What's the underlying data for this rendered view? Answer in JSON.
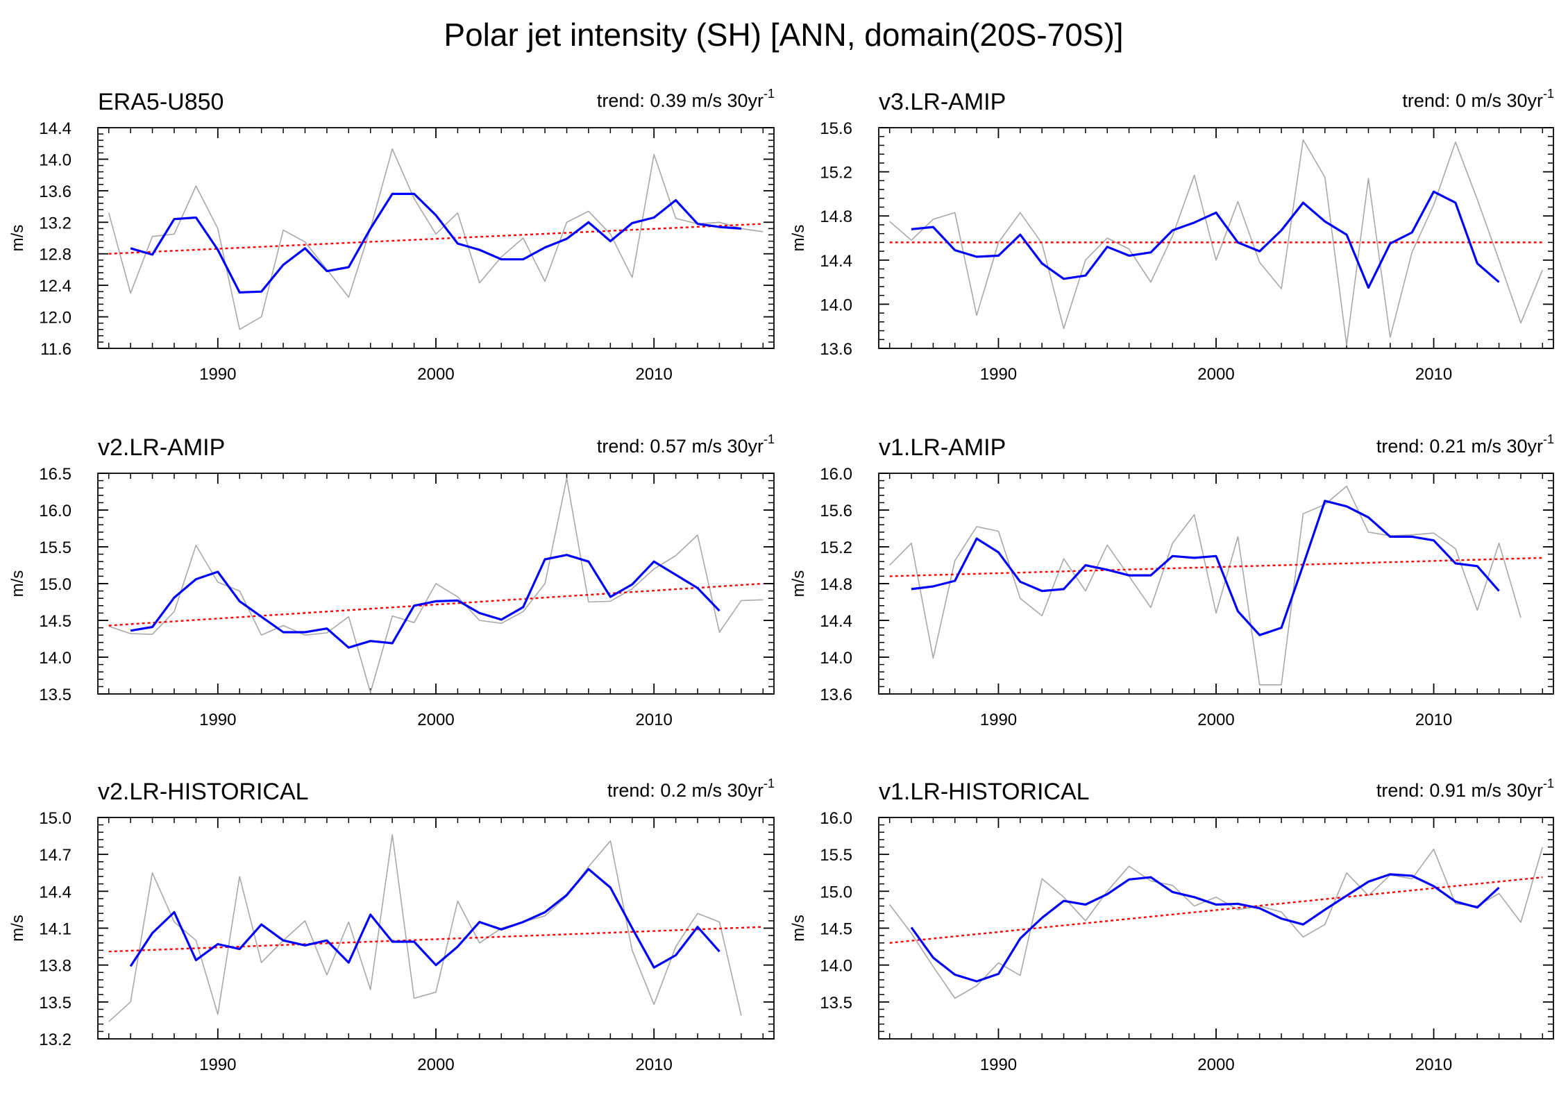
{
  "title": "Polar jet intensity (SH) [ANN, domain(20S-70S)]",
  "colors": {
    "raw": "#a8a8a8",
    "smooth": "#0000ff",
    "trend": "#ff0000",
    "axis": "#000000"
  },
  "chart_data": [
    {
      "type": "line",
      "title": "ERA5-U850",
      "trend_label": "trend: 0.39 m/s 30yr",
      "trend_exponent": "-1",
      "ylabel": "m/s",
      "xlim": [
        1984.5,
        2015.5
      ],
      "ylim": [
        11.6,
        14.4
      ],
      "yticks": [
        "11.6",
        "12.0",
        "12.4",
        "12.8",
        "13.2",
        "13.6",
        "14.0",
        "14.4"
      ],
      "xticks": [
        1990,
        2000,
        2010
      ],
      "x_raw": [
        1985,
        1986,
        1987,
        1988,
        1989,
        1990,
        1991,
        1992,
        1993,
        1994,
        1995,
        1996,
        1997,
        1998,
        1999,
        2000,
        2001,
        2002,
        2003,
        2004,
        2005,
        2006,
        2007,
        2008,
        2009,
        2010,
        2011,
        2012,
        2013,
        2014,
        2015
      ],
      "raw": [
        13.32,
        12.3,
        13.02,
        13.05,
        13.66,
        13.12,
        11.84,
        12.0,
        13.1,
        12.95,
        12.6,
        12.25,
        13.12,
        14.13,
        13.5,
        13.05,
        13.32,
        12.43,
        12.76,
        13.0,
        12.45,
        13.2,
        13.34,
        13.05,
        12.5,
        14.06,
        13.25,
        13.18,
        13.2,
        13.12,
        13.08
      ],
      "x_smooth": [
        1986,
        1987,
        1988,
        1989,
        1990,
        1991,
        1992,
        1993,
        1994,
        1995,
        1996,
        1997,
        1998,
        1999,
        2000,
        2001,
        2002,
        2003,
        2004,
        2005,
        2006,
        2007,
        2008,
        2009,
        2010,
        2011,
        2012,
        2013,
        2014
      ],
      "smooth": [
        12.87,
        12.79,
        13.24,
        13.26,
        12.85,
        12.31,
        12.32,
        12.66,
        12.87,
        12.58,
        12.63,
        13.12,
        13.56,
        13.56,
        13.29,
        12.93,
        12.85,
        12.73,
        12.73,
        12.88,
        12.99,
        13.2,
        12.96,
        13.19,
        13.26,
        13.48,
        13.18,
        13.14,
        13.12
      ],
      "trend_line": {
        "x": [
          1985,
          2015
        ],
        "y": [
          12.8,
          13.18
        ]
      }
    },
    {
      "type": "line",
      "title": "v3.LR-AMIP",
      "trend_label": "trend: 0 m/s 30yr",
      "trend_exponent": "-1",
      "ylabel": "m/s",
      "xlim": [
        1984.5,
        2015.5
      ],
      "ylim": [
        13.6,
        15.6
      ],
      "yticks": [
        "13.6",
        "14.0",
        "14.4",
        "14.8",
        "15.2",
        "15.6"
      ],
      "xticks": [
        1990,
        2000,
        2010
      ],
      "x_raw": [
        1985,
        1986,
        1987,
        1988,
        1989,
        1990,
        1991,
        1992,
        1993,
        1994,
        1995,
        1996,
        1997,
        1998,
        1999,
        2000,
        2001,
        2002,
        2003,
        2004,
        2005,
        2006,
        2007,
        2008,
        2009,
        2010,
        2011,
        2012,
        2013,
        2014,
        2015
      ],
      "raw": [
        14.75,
        14.58,
        14.77,
        14.83,
        13.9,
        14.56,
        14.83,
        14.55,
        13.78,
        14.4,
        14.6,
        14.5,
        14.2,
        14.62,
        15.17,
        14.4,
        14.93,
        14.38,
        14.14,
        15.49,
        15.15,
        13.63,
        15.14,
        13.7,
        14.47,
        14.9,
        15.47,
        14.95,
        14.4,
        13.83,
        14.31
      ],
      "x_smooth": [
        1986,
        1987,
        1988,
        1989,
        1990,
        1991,
        1992,
        1993,
        1994,
        1995,
        1996,
        1997,
        1998,
        1999,
        2000,
        2001,
        2002,
        2003,
        2004,
        2005,
        2006,
        2007,
        2008,
        2009,
        2010,
        2011,
        2012,
        2013,
        2014
      ],
      "smooth": [
        14.68,
        14.7,
        14.49,
        14.43,
        14.44,
        14.63,
        14.37,
        14.23,
        14.26,
        14.52,
        14.44,
        14.47,
        14.67,
        14.74,
        14.83,
        14.56,
        14.48,
        14.67,
        14.92,
        14.75,
        14.63,
        14.15,
        14.55,
        14.65,
        15.02,
        14.92,
        14.37,
        14.2,
        null
      ],
      "trend_line": {
        "x": [
          1985,
          2015
        ],
        "y": [
          14.56,
          14.56
        ]
      }
    },
    {
      "type": "line",
      "title": "v2.LR-AMIP",
      "trend_label": "trend: 0.57 m/s 30yr",
      "trend_exponent": "-1",
      "ylabel": "m/s",
      "xlim": [
        1984.5,
        2015.5
      ],
      "ylim": [
        13.5,
        16.5
      ],
      "yticks": [
        "13.5",
        "14.0",
        "14.5",
        "15.0",
        "15.5",
        "16.0",
        "16.5"
      ],
      "xticks": [
        1990,
        2000,
        2010
      ],
      "x_raw": [
        1985,
        1986,
        1987,
        1988,
        1989,
        1990,
        1991,
        1992,
        1993,
        1994,
        1995,
        1996,
        1997,
        1998,
        1999,
        2000,
        2001,
        2002,
        2003,
        2004,
        2005,
        2006,
        2007,
        2008,
        2009,
        2010,
        2011,
        2012,
        2013,
        2014,
        2015
      ],
      "raw": [
        14.42,
        14.32,
        14.31,
        14.62,
        15.52,
        15.02,
        14.9,
        14.3,
        14.43,
        14.3,
        14.33,
        14.55,
        13.52,
        14.56,
        14.47,
        15.0,
        14.82,
        14.5,
        14.46,
        14.62,
        15.0,
        16.43,
        14.75,
        14.76,
        14.93,
        15.2,
        15.38,
        15.66,
        14.34,
        14.77,
        14.78
      ],
      "x_smooth": [
        1986,
        1987,
        1988,
        1989,
        1990,
        1991,
        1992,
        1993,
        1994,
        1995,
        1996,
        1997,
        1998,
        1999,
        2000,
        2001,
        2002,
        2003,
        2004,
        2005,
        2006,
        2007,
        2008,
        2009,
        2010,
        2011,
        2012,
        2013,
        2014
      ],
      "smooth": [
        14.36,
        14.41,
        14.81,
        15.06,
        15.16,
        14.76,
        14.55,
        14.34,
        14.34,
        14.39,
        14.13,
        14.22,
        14.19,
        14.7,
        14.76,
        14.77,
        14.6,
        14.51,
        14.68,
        15.33,
        15.39,
        15.3,
        14.82,
        14.99,
        15.3,
        15.12,
        14.94,
        14.63,
        null
      ],
      "trend_line": {
        "x": [
          1985,
          2015
        ],
        "y": [
          14.43,
          15.0
        ]
      }
    },
    {
      "type": "line",
      "title": "v1.LR-AMIP",
      "trend_label": "trend: 0.21 m/s 30yr",
      "trend_exponent": "-1",
      "ylabel": "m/s",
      "xlim": [
        1984.5,
        2015.5
      ],
      "ylim": [
        13.6,
        16.0
      ],
      "yticks": [
        "13.6",
        "14.0",
        "14.4",
        "14.8",
        "15.2",
        "15.6",
        "16.0"
      ],
      "xticks": [
        1990,
        2000,
        2010
      ],
      "x_raw": [
        1985,
        1986,
        1987,
        1988,
        1989,
        1990,
        1991,
        1992,
        1993,
        1994,
        1995,
        1996,
        1997,
        1998,
        1999,
        2000,
        2001,
        2002,
        2003,
        2004,
        2005,
        2006,
        2007,
        2008,
        2009,
        2010,
        2011,
        2012,
        2013,
        2014,
        2015
      ],
      "raw": [
        15.0,
        15.24,
        13.99,
        15.05,
        15.42,
        15.37,
        14.64,
        14.45,
        15.07,
        14.72,
        15.22,
        14.88,
        14.54,
        15.24,
        15.55,
        14.48,
        15.31,
        13.7,
        13.7,
        15.56,
        15.66,
        15.86,
        15.36,
        15.32,
        15.33,
        15.35,
        15.18,
        14.51,
        15.24,
        14.43,
        null
      ],
      "x_smooth": [
        1986,
        1987,
        1988,
        1989,
        1990,
        1991,
        1992,
        1993,
        1994,
        1995,
        1996,
        1997,
        1998,
        1999,
        2000,
        2001,
        2002,
        2003,
        2004,
        2005,
        2006,
        2007,
        2008,
        2009,
        2010,
        2011,
        2012,
        2013,
        2014
      ],
      "smooth": [
        14.74,
        14.77,
        14.83,
        15.29,
        15.14,
        14.82,
        14.72,
        14.74,
        15.0,
        14.95,
        14.89,
        14.89,
        15.1,
        15.08,
        15.1,
        14.5,
        14.24,
        14.32,
        15.0,
        15.7,
        15.64,
        15.52,
        15.31,
        15.31,
        15.27,
        15.02,
        14.99,
        14.72,
        null
      ],
      "trend_line": {
        "x": [
          1985,
          2015
        ],
        "y": [
          14.88,
          15.08
        ]
      }
    },
    {
      "type": "line",
      "title": "v2.LR-HISTORICAL",
      "trend_label": "trend: 0.2 m/s 30yr",
      "trend_exponent": "-1",
      "ylabel": "m/s",
      "xlim": [
        1984.5,
        2015.5
      ],
      "ylim": [
        13.2,
        15.0
      ],
      "yticks": [
        "13.2",
        "13.5",
        "13.8",
        "14.1",
        "14.4",
        "14.7",
        "15.0"
      ],
      "xticks": [
        1990,
        2000,
        2010
      ],
      "x_raw": [
        1985,
        1986,
        1987,
        1988,
        1989,
        1990,
        1991,
        1992,
        1993,
        1994,
        1995,
        1996,
        1997,
        1998,
        1999,
        2000,
        2001,
        2002,
        2003,
        2004,
        2005,
        2006,
        2007,
        2008,
        2009,
        2010,
        2011,
        2012,
        2013,
        2014,
        2015
      ],
      "raw": [
        13.34,
        13.5,
        14.55,
        14.15,
        14.0,
        13.4,
        14.52,
        13.82,
        14.0,
        14.16,
        13.72,
        14.15,
        13.6,
        14.86,
        13.53,
        13.58,
        14.32,
        13.98,
        14.1,
        14.15,
        14.2,
        14.36,
        14.6,
        14.81,
        13.92,
        13.48,
        13.95,
        14.22,
        14.15,
        13.39,
        null
      ],
      "x_smooth": [
        1986,
        1987,
        1988,
        1989,
        1990,
        1991,
        1992,
        1993,
        1994,
        1995,
        1996,
        1997,
        1998,
        1999,
        2000,
        2001,
        2002,
        2003,
        2004,
        2005,
        2006,
        2007,
        2008,
        2009,
        2010,
        2011,
        2012,
        2013,
        2014
      ],
      "smooth": [
        13.79,
        14.06,
        14.23,
        13.84,
        13.97,
        13.93,
        14.13,
        14.0,
        13.96,
        14.0,
        13.82,
        14.21,
        13.99,
        13.99,
        13.8,
        13.95,
        14.15,
        14.09,
        14.15,
        14.23,
        14.37,
        14.58,
        14.43,
        14.1,
        13.78,
        13.88,
        14.11,
        13.91,
        null
      ],
      "trend_line": {
        "x": [
          1985,
          2015
        ],
        "y": [
          13.91,
          14.11
        ]
      }
    },
    {
      "type": "line",
      "title": "v1.LR-HISTORICAL",
      "trend_label": "trend: 0.91 m/s 30yr",
      "trend_exponent": "-1",
      "ylabel": "m/s",
      "xlim": [
        1984.5,
        2015.5
      ],
      "ylim": [
        13.0,
        16.0
      ],
      "yticks": [
        "13.5",
        "14.0",
        "14.5",
        "15.0",
        "15.5",
        "16.0"
      ],
      "xticks": [
        1990,
        2000,
        2010
      ],
      "x_raw": [
        1985,
        1986,
        1987,
        1988,
        1989,
        1990,
        1991,
        1992,
        1993,
        1994,
        1995,
        1996,
        1997,
        1998,
        1999,
        2000,
        2001,
        2002,
        2003,
        2004,
        2005,
        2006,
        2007,
        2008,
        2009,
        2010,
        2011,
        2012,
        2013,
        2014,
        2015
      ],
      "raw": [
        14.82,
        14.43,
        13.98,
        13.55,
        13.72,
        14.03,
        13.86,
        15.17,
        14.92,
        14.6,
        15.0,
        15.34,
        15.14,
        15.08,
        14.8,
        14.92,
        14.75,
        14.8,
        14.72,
        14.38,
        14.55,
        15.25,
        14.94,
        15.22,
        15.17,
        15.57,
        14.83,
        14.8,
        14.97,
        14.58,
        15.6
      ],
      "x_smooth": [
        1986,
        1987,
        1988,
        1989,
        1990,
        1991,
        1992,
        1993,
        1994,
        1995,
        1996,
        1997,
        1998,
        1999,
        2000,
        2001,
        2002,
        2003,
        2004,
        2005,
        2006,
        2007,
        2008,
        2009,
        2010,
        2011,
        2012,
        2013,
        2014
      ],
      "smooth": [
        14.51,
        14.1,
        13.87,
        13.78,
        13.88,
        14.36,
        14.64,
        14.87,
        14.82,
        14.96,
        15.16,
        15.19,
        14.99,
        14.92,
        14.82,
        14.83,
        14.77,
        14.63,
        14.55,
        14.75,
        14.94,
        15.13,
        15.23,
        15.21,
        15.07,
        14.86,
        14.78,
        15.05,
        null
      ],
      "trend_line": {
        "x": [
          1985,
          2015
        ],
        "y": [
          14.3,
          15.19
        ]
      }
    }
  ]
}
